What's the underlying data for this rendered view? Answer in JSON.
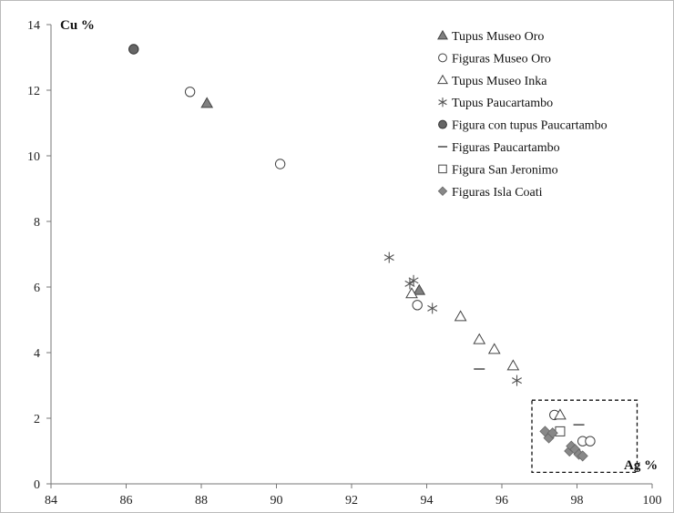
{
  "chart_data": {
    "type": "scatter",
    "title": "",
    "xlabel": "Ag %",
    "ylabel": "Cu %",
    "xlim": [
      84,
      100
    ],
    "ylim": [
      0,
      14
    ],
    "x_ticks": [
      "84",
      "86",
      "88",
      "90",
      "92",
      "94",
      "96",
      "98",
      "100"
    ],
    "y_ticks": [
      "0",
      "2",
      "4",
      "6",
      "8",
      "10",
      "12",
      "14"
    ],
    "grid": false,
    "legend_position": "top-right",
    "highlight_box": {
      "x_range": [
        96.8,
        99.6
      ],
      "y_range": [
        0.35,
        2.55
      ],
      "style": "dashed"
    },
    "series": [
      {
        "name": "Tupus Museo Oro",
        "marker": "filled-triangle",
        "color": "#808080",
        "points": [
          [
            88.15,
            11.6
          ],
          [
            93.8,
            5.9
          ]
        ]
      },
      {
        "name": "Figuras Museo Oro",
        "marker": "open-circle",
        "color": "#555555",
        "points": [
          [
            87.7,
            11.95
          ],
          [
            90.1,
            9.75
          ],
          [
            93.75,
            5.45
          ],
          [
            97.4,
            2.1
          ],
          [
            98.15,
            1.3
          ],
          [
            98.35,
            1.3
          ]
        ]
      },
      {
        "name": "Tupus Museo Inka",
        "marker": "open-triangle",
        "color": "#555555",
        "points": [
          [
            93.6,
            5.8
          ],
          [
            94.9,
            5.1
          ],
          [
            95.4,
            4.4
          ],
          [
            95.8,
            4.1
          ],
          [
            96.3,
            3.6
          ],
          [
            97.55,
            2.1
          ]
        ]
      },
      {
        "name": "Tupus Paucartambo",
        "marker": "asterisk",
        "color": "#555555",
        "points": [
          [
            93.0,
            6.9
          ],
          [
            93.55,
            6.1
          ],
          [
            93.65,
            6.2
          ],
          [
            94.15,
            5.35
          ],
          [
            96.4,
            3.15
          ]
        ]
      },
      {
        "name": "Figura con tupus Paucartambo",
        "marker": "filled-circle",
        "color": "#666666",
        "points": [
          [
            86.2,
            13.25
          ]
        ]
      },
      {
        "name": "Figuras Paucartambo",
        "marker": "dash",
        "color": "#555555",
        "points": [
          [
            95.4,
            3.5
          ],
          [
            98.05,
            1.8
          ]
        ]
      },
      {
        "name": "Figura San Jeronimo",
        "marker": "open-square",
        "color": "#555555",
        "points": [
          [
            97.55,
            1.6
          ]
        ]
      },
      {
        "name": "Figuras Isla Coati",
        "marker": "diamond",
        "color": "#888888",
        "points": [
          [
            97.15,
            1.6
          ],
          [
            97.25,
            1.4
          ],
          [
            97.35,
            1.55
          ],
          [
            97.8,
            1.0
          ],
          [
            97.85,
            1.15
          ],
          [
            97.95,
            1.05
          ],
          [
            98.05,
            0.9
          ],
          [
            98.15,
            0.85
          ]
        ]
      }
    ]
  }
}
